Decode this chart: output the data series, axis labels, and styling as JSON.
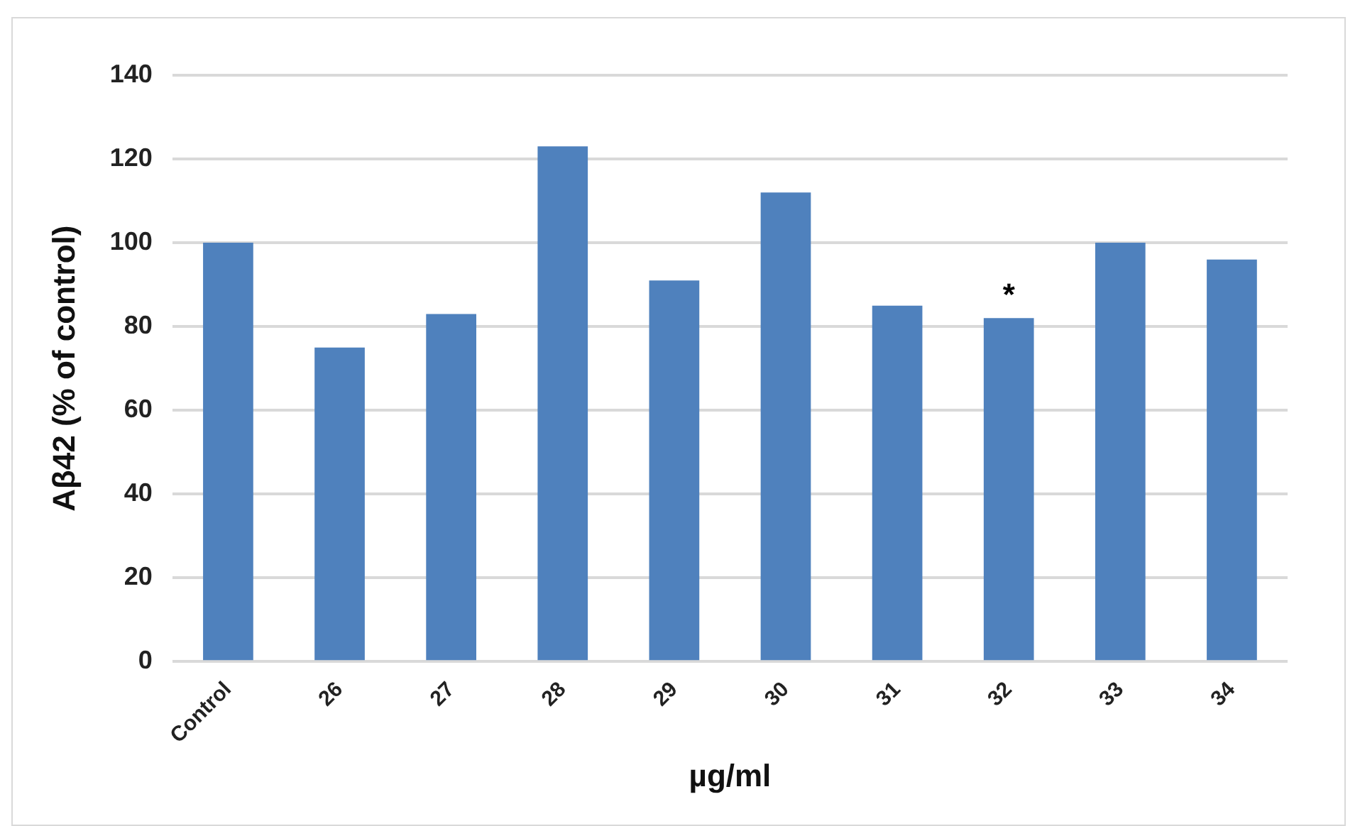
{
  "chart_data": {
    "type": "bar",
    "xlabel": "µg/ml",
    "ylabel": "Aβ42 (% of control)",
    "categories": [
      "Control",
      "26",
      "27",
      "28",
      "29",
      "30",
      "31",
      "32",
      "33",
      "34"
    ],
    "values": [
      100,
      75,
      83,
      123,
      91,
      112,
      85,
      82,
      100,
      96
    ],
    "color": "#4f81bd",
    "ylim": [
      0,
      140
    ],
    "yticks": [
      0,
      20,
      40,
      60,
      80,
      100,
      120,
      140
    ],
    "grid": "y",
    "annotations": [
      {
        "text": "*",
        "x": "32",
        "y": 82
      }
    ]
  }
}
